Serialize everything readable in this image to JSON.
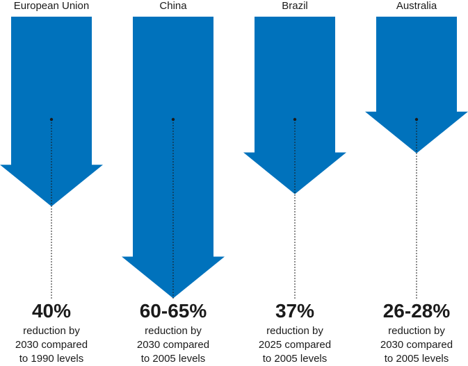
{
  "chart_data": {
    "type": "bar",
    "color": "#0072bc",
    "categories": [
      "European Union",
      "China",
      "Brazil",
      "Australia"
    ],
    "targets": [
      {
        "country": "European Union",
        "label": "40%",
        "value": 40,
        "desc": [
          "reduction by",
          "2030 compared",
          "to 1990 levels"
        ]
      },
      {
        "country": "China",
        "label": "60-65%",
        "value": 62.5,
        "desc": [
          "reduction by",
          "2030 compared",
          "to 2005 levels"
        ]
      },
      {
        "country": "Brazil",
        "label": "37%",
        "value": 37,
        "desc": [
          "reduction by",
          "2025 compared",
          "to 2005 levels"
        ]
      },
      {
        "country": "Australia",
        "label": "26-28%",
        "value": 27,
        "desc": [
          "reduction by",
          "2030 compared",
          "to 2005 levels"
        ]
      }
    ]
  }
}
